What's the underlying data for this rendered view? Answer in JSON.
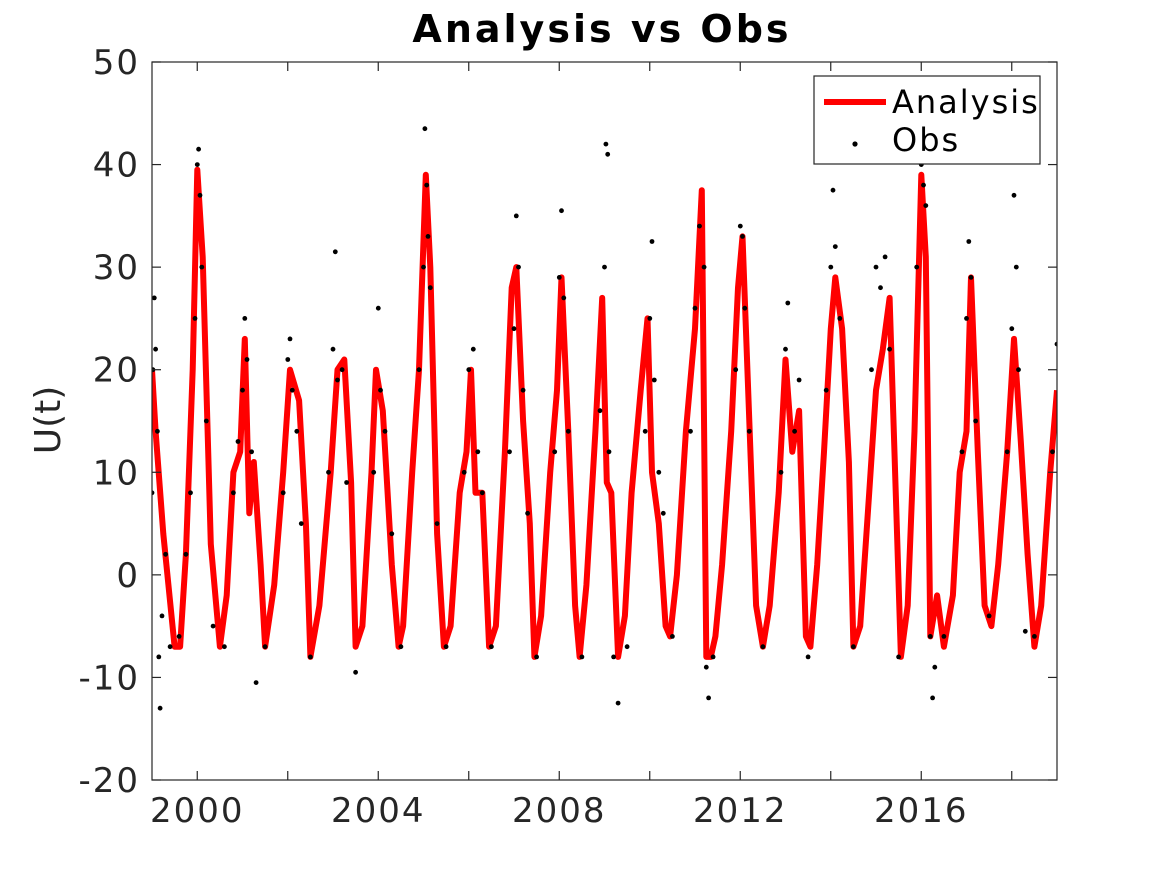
{
  "chart_data": {
    "type": "line",
    "title": "Analysis vs Obs",
    "xlabel": "",
    "ylabel": "U(t)",
    "xlim": [
      1999.0,
      2019.0
    ],
    "ylim": [
      -20,
      50
    ],
    "x_ticks": [
      2000,
      2004,
      2008,
      2012,
      2016
    ],
    "x_tick_labels": [
      "2000",
      "2004",
      "2008",
      "2012",
      "2016"
    ],
    "y_ticks": [
      -20,
      -10,
      0,
      10,
      20,
      30,
      40,
      50
    ],
    "y_tick_labels": [
      "-20",
      "-10",
      "0",
      "10",
      "20",
      "30",
      "40",
      "50"
    ],
    "grid": false,
    "box": true,
    "legend": {
      "position": "top-right",
      "entries": [
        "Analysis",
        "Obs"
      ]
    },
    "colors": {
      "analysis": "#ff0000",
      "obs": "#000000"
    },
    "series": [
      {
        "name": "Analysis",
        "style": "line",
        "color": "#ff0000",
        "x": [
          1999.0,
          1999.08,
          1999.25,
          1999.5,
          1999.62,
          1999.75,
          1999.9,
          2000.0,
          2000.12,
          2000.3,
          2000.5,
          2000.65,
          2000.8,
          2000.95,
          2001.05,
          2001.15,
          2001.25,
          2001.4,
          2001.5,
          2001.7,
          2001.9,
          2002.05,
          2002.25,
          2002.4,
          2002.5,
          2002.7,
          2002.95,
          2003.1,
          2003.25,
          2003.4,
          2003.5,
          2003.65,
          2003.85,
          2003.95,
          2004.1,
          2004.3,
          2004.45,
          2004.55,
          2004.75,
          2004.9,
          2005.05,
          2005.15,
          2005.3,
          2005.45,
          2005.6,
          2005.8,
          2005.95,
          2006.05,
          2006.15,
          2006.3,
          2006.45,
          2006.6,
          2006.8,
          2006.95,
          2007.05,
          2007.2,
          2007.35,
          2007.45,
          2007.6,
          2007.8,
          2007.95,
          2008.05,
          2008.2,
          2008.35,
          2008.45,
          2008.6,
          2008.8,
          2008.95,
          2009.05,
          2009.15,
          2009.3,
          2009.45,
          2009.6,
          2009.8,
          2009.95,
          2010.05,
          2010.2,
          2010.35,
          2010.45,
          2010.6,
          2010.8,
          2011.0,
          2011.15,
          2011.25,
          2011.35,
          2011.45,
          2011.6,
          2011.8,
          2011.95,
          2012.05,
          2012.2,
          2012.35,
          2012.5,
          2012.65,
          2012.85,
          2013.0,
          2013.15,
          2013.3,
          2013.45,
          2013.55,
          2013.7,
          2013.85,
          2014.0,
          2014.1,
          2014.25,
          2014.4,
          2014.5,
          2014.65,
          2014.85,
          2015.0,
          2015.15,
          2015.3,
          2015.45,
          2015.55,
          2015.7,
          2015.85,
          2016.0,
          2016.1,
          2016.2,
          2016.35,
          2016.5,
          2016.7,
          2016.85,
          2017.0,
          2017.1,
          2017.25,
          2017.4,
          2017.55,
          2017.7,
          2017.9,
          2018.05,
          2018.2,
          2018.35,
          2018.5,
          2018.65,
          2018.85,
          2019.0
        ],
        "y": [
          20,
          14,
          4,
          -7,
          -7,
          2,
          20,
          39.5,
          31,
          3,
          -7,
          -2,
          10,
          12,
          23,
          6,
          11,
          1,
          -7,
          -1,
          10,
          20,
          17,
          5,
          -8,
          -3,
          10,
          20,
          21,
          9,
          -7,
          -5,
          10,
          20,
          16,
          1,
          -7,
          -5,
          10,
          20,
          39,
          30,
          4,
          -7,
          -5,
          8,
          12,
          20,
          8,
          8,
          -7,
          -5,
          12,
          28,
          30,
          15,
          5,
          -8,
          -4,
          10,
          18,
          29,
          14,
          -3,
          -8,
          -1,
          14,
          27,
          9,
          8,
          -8,
          -4,
          8,
          18,
          25,
          10,
          5,
          -5,
          -6,
          0,
          14,
          24,
          37.5,
          -8,
          -8,
          -6,
          1,
          14,
          28,
          33,
          15,
          -3,
          -7,
          -3,
          8,
          21,
          12,
          16,
          -6,
          -7,
          1,
          12,
          24,
          29,
          24,
          11,
          -7,
          -5,
          8,
          18,
          22,
          27,
          6,
          -8,
          -3,
          14,
          39,
          31,
          -6,
          -2,
          -7,
          -2,
          10,
          14,
          29,
          12,
          -3,
          -5,
          1,
          12,
          23,
          13,
          2,
          -7,
          -3,
          10,
          18
        ]
      },
      {
        "name": "Obs",
        "style": "points",
        "color": "#000000",
        "x": [
          1999.0,
          1999.02,
          1999.05,
          1999.08,
          1999.12,
          1999.15,
          1999.18,
          1999.22,
          1999.3,
          1999.4,
          1999.6,
          1999.75,
          1999.85,
          1999.95,
          2000.0,
          2000.03,
          2000.06,
          2000.1,
          2000.2,
          2000.35,
          2000.6,
          2000.8,
          2000.9,
          2001.0,
          2001.05,
          2001.1,
          2001.2,
          2001.3,
          2001.5,
          2001.9,
          2002.0,
          2002.05,
          2002.1,
          2002.2,
          2002.3,
          2002.5,
          2002.9,
          2003.0,
          2003.05,
          2003.1,
          2003.2,
          2003.3,
          2003.5,
          2003.9,
          2004.0,
          2004.05,
          2004.15,
          2004.3,
          2004.5,
          2004.9,
          2005.0,
          2005.03,
          2005.07,
          2005.1,
          2005.15,
          2005.3,
          2005.5,
          2005.9,
          2006.0,
          2006.1,
          2006.2,
          2006.3,
          2006.5,
          2006.9,
          2007.0,
          2007.05,
          2007.1,
          2007.2,
          2007.3,
          2007.5,
          2007.9,
          2008.0,
          2008.05,
          2008.1,
          2008.2,
          2008.5,
          2008.9,
          2009.0,
          2009.03,
          2009.07,
          2009.1,
          2009.2,
          2009.3,
          2009.5,
          2009.9,
          2010.0,
          2010.05,
          2010.1,
          2010.2,
          2010.3,
          2010.5,
          2010.9,
          2011.0,
          2011.1,
          2011.2,
          2011.25,
          2011.3,
          2011.4,
          2011.9,
          2012.0,
          2012.05,
          2012.1,
          2012.2,
          2012.5,
          2012.9,
          2013.0,
          2013.05,
          2013.2,
          2013.3,
          2013.5,
          2013.9,
          2014.0,
          2014.05,
          2014.1,
          2014.2,
          2014.5,
          2014.9,
          2015.0,
          2015.1,
          2015.2,
          2015.3,
          2015.5,
          2015.9,
          2016.0,
          2016.05,
          2016.1,
          2016.2,
          2016.25,
          2016.3,
          2016.5,
          2016.9,
          2017.0,
          2017.05,
          2017.1,
          2017.2,
          2017.5,
          2017.9,
          2018.0,
          2018.05,
          2018.1,
          2018.15,
          2018.3,
          2018.5,
          2018.9,
          2019.0
        ],
        "y": [
          8,
          20,
          27,
          22,
          14,
          -8,
          -13,
          -4,
          2,
          -7,
          -6,
          2,
          8,
          25,
          40,
          41.5,
          37,
          30,
          15,
          -5,
          -7,
          8,
          13,
          18,
          25,
          21,
          12,
          -10.5,
          -7,
          8,
          21,
          23,
          18,
          14,
          5,
          -8,
          10,
          22,
          31.5,
          19,
          20,
          9,
          -9.5,
          10,
          26,
          18,
          14,
          4,
          -7,
          20,
          30,
          43.5,
          38,
          33,
          28,
          5,
          -7,
          10,
          20,
          22,
          12,
          8,
          -7,
          12,
          24,
          35,
          30,
          18,
          6,
          -8,
          12,
          29,
          35.5,
          27,
          14,
          -8,
          16,
          30,
          42,
          41,
          12,
          -8,
          -12.5,
          -7,
          14,
          25,
          32.5,
          19,
          10,
          6,
          -6,
          14,
          26,
          34,
          30,
          -9,
          -12,
          -8,
          20,
          34,
          33,
          26,
          14,
          -7,
          10,
          22,
          26.5,
          14,
          19,
          -8,
          18,
          30,
          37.5,
          32,
          25,
          -7,
          20,
          30,
          28,
          31,
          22,
          -8,
          30,
          40,
          38,
          36,
          -6,
          -12,
          -9,
          -6,
          12,
          25,
          32.5,
          29,
          15,
          -4,
          12,
          24,
          37,
          30,
          20,
          -5.5,
          -6,
          12,
          22.5
        ]
      }
    ]
  }
}
